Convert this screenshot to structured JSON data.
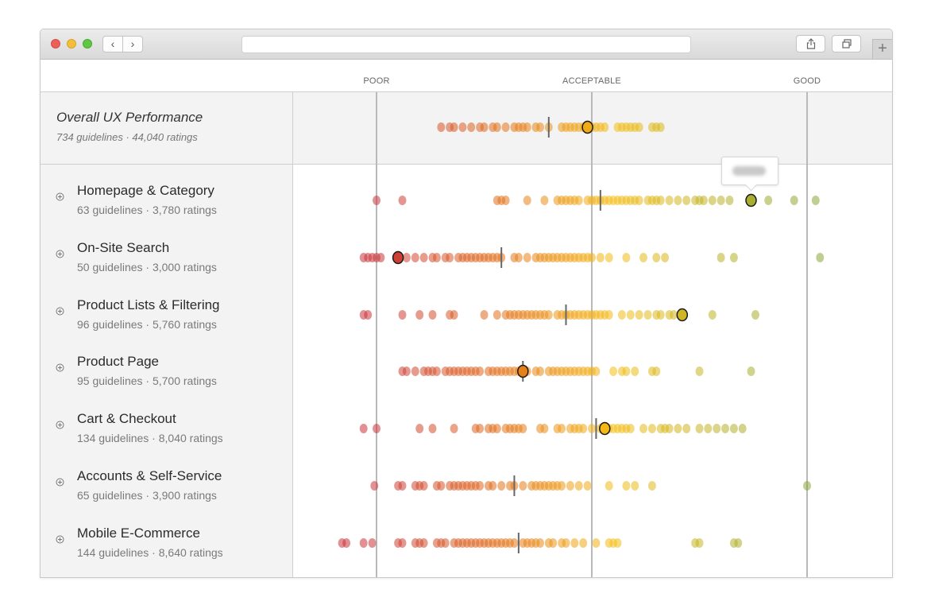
{
  "browser": {
    "back_glyph": "‹",
    "forward_glyph": "›",
    "new_tab_glyph": "+",
    "icons": [
      "share-icon",
      "tabs-icon"
    ]
  },
  "scale": {
    "labels": [
      "POOR",
      "ACCEPTABLE",
      "GOOD"
    ]
  },
  "overall": {
    "title": "Overall UX Performance",
    "subtitle": "734 guidelines · 44,040 ratings"
  },
  "categories": [
    {
      "title": "Homepage & Category",
      "subtitle": "63 guidelines · 3,780 ratings"
    },
    {
      "title": "On-Site Search",
      "subtitle": "50 guidelines · 3,000 ratings"
    },
    {
      "title": "Product Lists & Filtering",
      "subtitle": "96 guidelines · 5,760 ratings"
    },
    {
      "title": "Product Page",
      "subtitle": "95 guidelines · 5,700 ratings"
    },
    {
      "title": "Cart & Checkout",
      "subtitle": "134 guidelines · 8,040 ratings"
    },
    {
      "title": "Accounts & Self-Service",
      "subtitle": "65 guidelines · 3,900 ratings"
    },
    {
      "title": "Mobile E-Commerce",
      "subtitle": "144 guidelines · 8,640 ratings"
    }
  ],
  "colors": {
    "poor": "#c8353a",
    "mid": "#e3741a",
    "acceptable": "#f5bd14",
    "good": "#8aa83a",
    "highlight_stroke": "#1a1a1a"
  },
  "chart_data": {
    "type": "scatter",
    "scale_marks": [
      "POOR",
      "ACCEPTABLE",
      "GOOD"
    ],
    "scale_range": [
      0,
      100
    ],
    "anchors": {
      "POOR": 0,
      "ACCEPTABLE": 50,
      "GOOD": 100
    },
    "rows": [
      {
        "name": "Overall UX Performance",
        "median": 40,
        "highlight": 49,
        "points": [
          15,
          17,
          18,
          20,
          22,
          24,
          25,
          27,
          28,
          30,
          32,
          33,
          34,
          35,
          37,
          38,
          40,
          43,
          44,
          45,
          46,
          47,
          48,
          50,
          51,
          52,
          53,
          56,
          57,
          58,
          59,
          60,
          61,
          64,
          65,
          66
        ]
      },
      {
        "name": "Homepage & Category",
        "median": 52,
        "highlight": 87,
        "points": [
          0,
          6,
          28,
          29,
          30,
          35,
          39,
          42,
          43,
          44,
          45,
          46,
          47,
          49,
          50,
          51,
          52,
          53,
          54,
          55,
          56,
          57,
          58,
          59,
          60,
          61,
          63,
          64,
          65,
          66,
          68,
          70,
          72,
          74,
          75,
          76,
          78,
          80,
          82,
          87,
          91,
          97,
          102
        ]
      },
      {
        "name": "On-Site Search",
        "median": 29,
        "highlight": 5,
        "points": [
          -3,
          -2,
          -1,
          0,
          1,
          5,
          7,
          9,
          11,
          13,
          14,
          16,
          17,
          19,
          20,
          21,
          22,
          23,
          24,
          25,
          26,
          27,
          28,
          29,
          32,
          33,
          35,
          37,
          38,
          39,
          40,
          41,
          42,
          43,
          44,
          45,
          46,
          47,
          48,
          49,
          50,
          52,
          54,
          58,
          62,
          65,
          67,
          80,
          83,
          103
        ]
      },
      {
        "name": "Product Lists & Filtering",
        "median": 44,
        "highlight": 71,
        "points": [
          -3,
          -2,
          6,
          10,
          13,
          17,
          18,
          25,
          28,
          30,
          31,
          32,
          33,
          34,
          35,
          36,
          37,
          38,
          39,
          40,
          42,
          43,
          44,
          45,
          46,
          47,
          48,
          49,
          50,
          51,
          52,
          53,
          54,
          57,
          59,
          61,
          63,
          65,
          66,
          68,
          69,
          71,
          78,
          88
        ]
      },
      {
        "name": "Product Page",
        "median": 34,
        "highlight": 34,
        "points": [
          6,
          7,
          9,
          11,
          12,
          13,
          14,
          16,
          17,
          18,
          19,
          20,
          21,
          22,
          23,
          24,
          26,
          27,
          28,
          29,
          30,
          31,
          32,
          33,
          34,
          35,
          37,
          38,
          40,
          41,
          42,
          43,
          44,
          45,
          46,
          47,
          48,
          49,
          50,
          51,
          55,
          57,
          58,
          60,
          64,
          65,
          75,
          87
        ]
      },
      {
        "name": "Cart & Checkout",
        "median": 51,
        "highlight": 53,
        "points": [
          -3,
          0,
          10,
          13,
          18,
          23,
          24,
          26,
          27,
          28,
          30,
          31,
          32,
          33,
          34,
          38,
          39,
          42,
          43,
          45,
          46,
          47,
          48,
          50,
          52,
          54,
          55,
          56,
          57,
          58,
          59,
          62,
          64,
          66,
          67,
          68,
          70,
          72,
          75,
          77,
          79,
          81,
          83,
          85
        ]
      },
      {
        "name": "Accounts & Self-Service",
        "median": 32,
        "highlight": null,
        "points": [
          -0.5,
          5,
          6,
          9,
          10,
          11,
          14,
          15,
          17,
          18,
          19,
          20,
          21,
          22,
          23,
          24,
          26,
          27,
          29,
          31,
          32,
          34,
          36,
          37,
          38,
          39,
          40,
          41,
          42,
          43,
          45,
          47,
          49,
          54,
          58,
          60,
          64,
          100
        ]
      },
      {
        "name": "Mobile E-Commerce",
        "median": 33,
        "highlight": null,
        "points": [
          -8,
          -7,
          -3,
          -1,
          5,
          6,
          9,
          10,
          11,
          14,
          15,
          16,
          18,
          19,
          20,
          21,
          22,
          23,
          24,
          25,
          26,
          27,
          28,
          29,
          30,
          31,
          32,
          34,
          35,
          36,
          37,
          38,
          40,
          41,
          43,
          44,
          46,
          48,
          51,
          54,
          55,
          56,
          74,
          75,
          83,
          84
        ]
      }
    ]
  }
}
